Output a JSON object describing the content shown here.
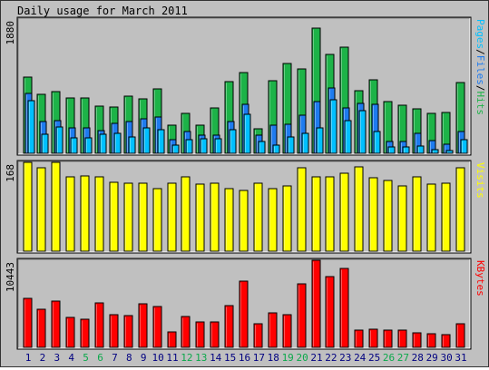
{
  "chart_data": {
    "type": "bar",
    "title": "Daily usage for March 2011",
    "categories": [
      "1",
      "2",
      "3",
      "4",
      "5",
      "6",
      "7",
      "8",
      "9",
      "10",
      "11",
      "12",
      "13",
      "14",
      "15",
      "16",
      "17",
      "18",
      "19",
      "20",
      "21",
      "22",
      "23",
      "24",
      "25",
      "26",
      "27",
      "28",
      "29",
      "30",
      "31"
    ],
    "weekend_days": [
      "5",
      "6",
      "12",
      "13",
      "19",
      "20",
      "26",
      "27"
    ],
    "colors": {
      "hits": "#1db348",
      "files": "#1e7bef",
      "pages": "#00c0ff",
      "visits": "#ffff00",
      "kbytes": "#ff0000",
      "weekend_label": "#0aa84a",
      "weekday_label": "#000080",
      "panel": "#c0c0c0"
    },
    "panels": [
      {
        "id": "hits",
        "ymax_label": "1880",
        "ylim": [
          0,
          1880
        ],
        "side_label": [
          {
            "text": "Pages",
            "color": "#00c0ff"
          },
          {
            "text": "/",
            "color": "#000000"
          },
          {
            "text": "Files",
            "color": "#1e7bef"
          },
          {
            "text": "/",
            "color": "#000000"
          },
          {
            "text": "Hits",
            "color": "#1db348"
          }
        ],
        "series": [
          {
            "name": "Hits",
            "values": [
              1070,
              830,
              870,
              770,
              770,
              660,
              650,
              800,
              760,
              900,
              390,
              560,
              400,
              630,
              1000,
              1130,
              340,
              1010,
              1260,
              1180,
              1750,
              1390,
              1490,
              880,
              1030,
              720,
              670,
              620,
              560,
              570,
              990
            ]
          },
          {
            "name": "Files",
            "values": [
              840,
              450,
              460,
              360,
              360,
              320,
              420,
              440,
              480,
              510,
              190,
              310,
              260,
              260,
              450,
              690,
              260,
              390,
              410,
              530,
              730,
              920,
              630,
              700,
              690,
              170,
              170,
              280,
              180,
              130,
              300
            ]
          },
          {
            "name": "Pages",
            "values": [
              740,
              270,
              370,
              220,
              220,
              270,
              280,
              230,
              360,
              330,
              110,
              190,
              200,
              200,
              330,
              540,
              160,
              110,
              230,
              280,
              350,
              750,
              460,
              600,
              300,
              90,
              90,
              100,
              50,
              40,
              190
            ]
          }
        ]
      },
      {
        "id": "visits",
        "ymax_label": "168",
        "ylim": [
          0,
          168
        ],
        "side_label": [
          {
            "text": "Visits",
            "color": "#ffff00"
          }
        ],
        "series": [
          {
            "name": "Visits",
            "values": [
              168,
              158,
              168,
              141,
              143,
              140,
              131,
              128,
              129,
              118,
              129,
              141,
              127,
              128,
              119,
              114,
              129,
              118,
              123,
              158,
              141,
              140,
              147,
              160,
              139,
              134,
              123,
              141,
              126,
              129,
              157
            ]
          }
        ]
      },
      {
        "id": "kbytes",
        "ymax_label": "10443",
        "ylim": [
          0,
          10443
        ],
        "side_label": [
          {
            "text": "KBytes",
            "color": "#ff0000"
          }
        ],
        "series": [
          {
            "name": "KBytes",
            "values": [
              5910,
              4560,
              5510,
              3600,
              3380,
              5330,
              3940,
              3790,
              5210,
              4900,
              1850,
              3660,
              3080,
              3080,
              5020,
              7980,
              2850,
              4080,
              3950,
              7600,
              10443,
              8520,
              9510,
              2060,
              2180,
              2060,
              2060,
              1730,
              1630,
              1570,
              2840
            ]
          }
        ]
      }
    ]
  }
}
